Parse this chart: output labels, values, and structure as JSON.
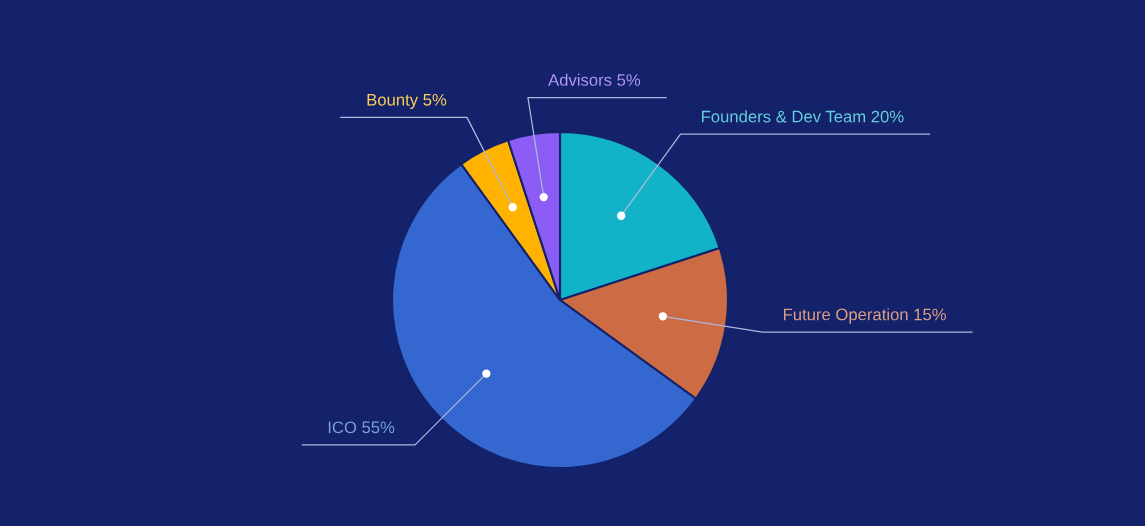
{
  "chart_data": {
    "type": "pie",
    "categories": [
      "Founders & Dev Team",
      "Future Operation",
      "ICO",
      "Bounty",
      "Advisors"
    ],
    "values": [
      20,
      15,
      55,
      5,
      5
    ],
    "value_labels": [
      "20%",
      "15%",
      "55%",
      "5%",
      "5%"
    ],
    "colors": [
      "#12b3c8",
      "#cc6b44",
      "#3468d0",
      "#ffb300",
      "#8b5cf6"
    ]
  }
}
